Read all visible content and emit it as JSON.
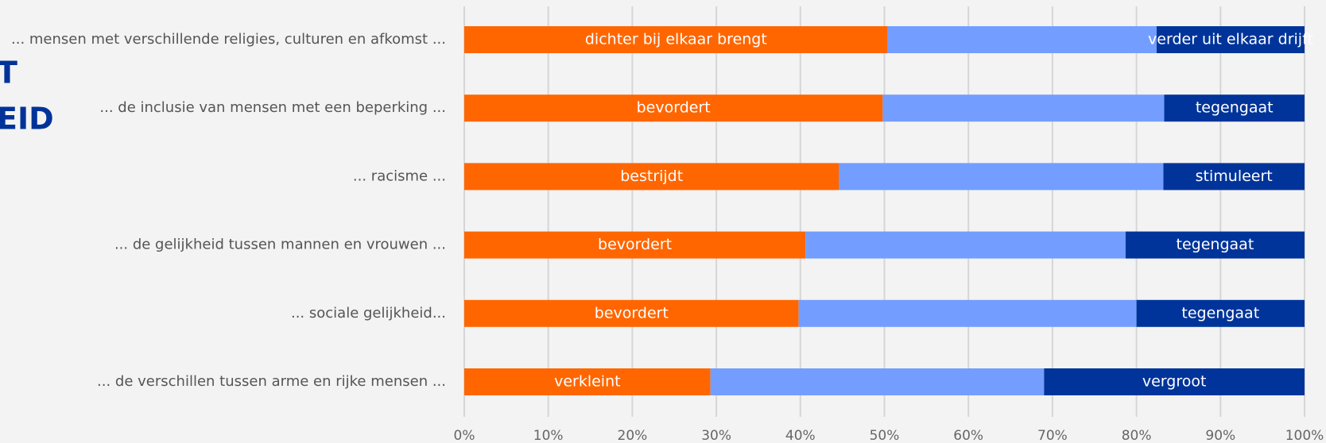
{
  "chart_data": {
    "type": "stacked_barh",
    "title_lines": [
      "T",
      "EID"
    ],
    "categories": [
      "... mensen met verschillende religies, culturen en afkomst ...",
      "... de inclusie van mensen met een beperking ...",
      "... racisme ...",
      "... de gelijkheid tussen mannen en vrouwen ...",
      "... sociale gelijkheid...",
      "... de verschillen tussen arme en rijke mensen ..."
    ],
    "series": [
      {
        "color": "#ff6600",
        "values": [
          50.4,
          49.8,
          44.6,
          40.6,
          39.8,
          29.3
        ],
        "labels": [
          "dichter bij elkaar brengt",
          "bevordert",
          "bestrijdt",
          "bevordert",
          "bevordert",
          "verkleint"
        ]
      },
      {
        "color": "#739eff",
        "values": [
          32.0,
          33.5,
          38.6,
          38.1,
          40.2,
          39.7
        ]
      },
      {
        "color": "#00349a",
        "values": [
          17.6,
          16.7,
          16.8,
          21.3,
          20.0,
          31.0
        ],
        "labels": [
          "verder uit elkaar drijft",
          "tegengaat",
          "stimuleert",
          "tegengaat",
          "tegengaat",
          "vergroot"
        ]
      }
    ],
    "xlim": [
      0,
      100
    ],
    "xticks": [
      {
        "value": 0,
        "label": "0%"
      },
      {
        "value": 10,
        "label": "10%"
      },
      {
        "value": 20,
        "label": "20%"
      },
      {
        "value": 30,
        "label": "30%"
      },
      {
        "value": 40,
        "label": "40%"
      },
      {
        "value": 50,
        "label": "50%"
      },
      {
        "value": 60,
        "label": "60%"
      },
      {
        "value": 70,
        "label": "70%"
      },
      {
        "value": 80,
        "label": "80%"
      },
      {
        "value": 90,
        "label": "90%"
      },
      {
        "value": 100,
        "label": "100%"
      }
    ],
    "grid": true
  }
}
